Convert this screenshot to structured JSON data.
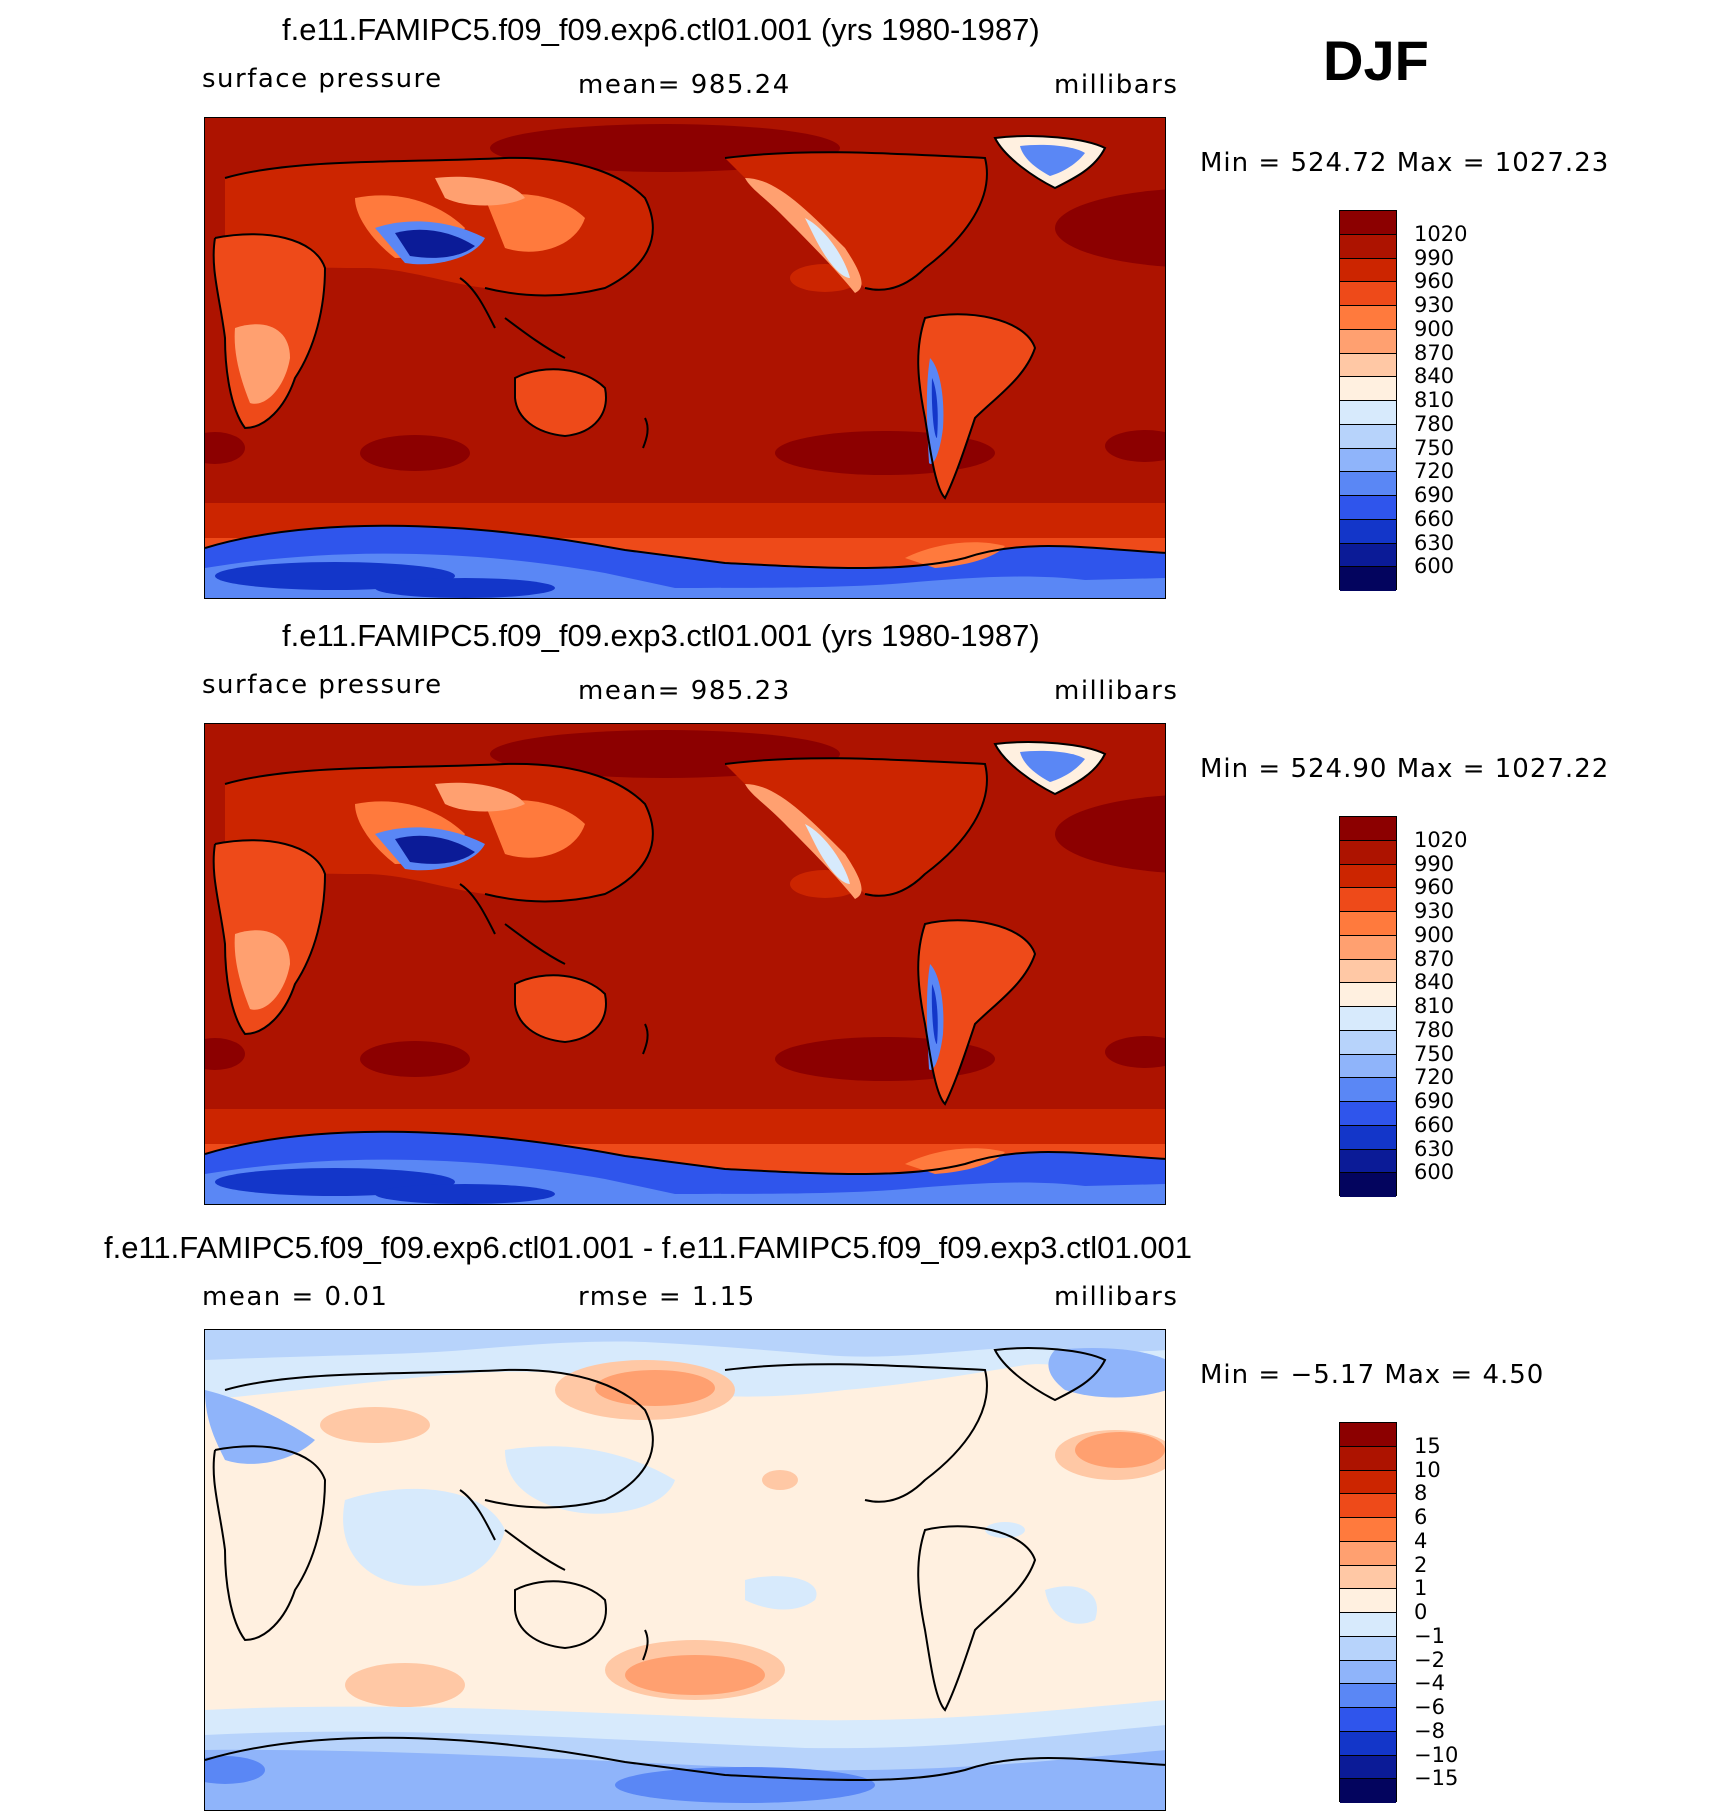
{
  "season": "DJF",
  "panels": [
    {
      "title": "f.e11.FAMIPC5.f09_f09.exp6.ctl01.001 (yrs 1980-1987)",
      "variable": "surface pressure",
      "stat": "mean=  985.24",
      "units": "millibars",
      "minmax": "Min  =  524.72  Max  =  1027.23",
      "colorbar_labels": [
        "1020",
        "990",
        "960",
        "930",
        "900",
        "870",
        "840",
        "810",
        "780",
        "750",
        "720",
        "690",
        "660",
        "630",
        "600"
      ],
      "colorbar_colors": [
        "#8c0000",
        "#ad1300",
        "#cc2500",
        "#ee4a19",
        "#ff7a3d",
        "#ffa070",
        "#ffc8a5",
        "#fff0e0",
        "#d7eafc",
        "#b7d3fb",
        "#8fb4fa",
        "#5a87f5",
        "#2f55ec",
        "#1336c9",
        "#0b1b97",
        "#03045e"
      ]
    },
    {
      "title": "f.e11.FAMIPC5.f09_f09.exp3.ctl01.001 (yrs 1980-1987)",
      "variable": "surface pressure",
      "stat": "mean=  985.23",
      "units": "millibars",
      "minmax": "Min  =  524.90  Max  =  1027.22",
      "colorbar_labels": [
        "1020",
        "990",
        "960",
        "930",
        "900",
        "870",
        "840",
        "810",
        "780",
        "750",
        "720",
        "690",
        "660",
        "630",
        "600"
      ],
      "colorbar_colors": [
        "#8c0000",
        "#ad1300",
        "#cc2500",
        "#ee4a19",
        "#ff7a3d",
        "#ffa070",
        "#ffc8a5",
        "#fff0e0",
        "#d7eafc",
        "#b7d3fb",
        "#8fb4fa",
        "#5a87f5",
        "#2f55ec",
        "#1336c9",
        "#0b1b97",
        "#03045e"
      ]
    },
    {
      "title": "f.e11.FAMIPC5.f09_f09.exp6.ctl01.001 - f.e11.FAMIPC5.f09_f09.exp3.ctl01.001",
      "stat_left": "mean  =     0.01",
      "stat_mid": "rmse  =     1.15",
      "units": "millibars",
      "minmax": "Min  =    −5.17  Max  =     4.50",
      "colorbar_labels": [
        "15",
        "10",
        "8",
        "6",
        "4",
        "2",
        "1",
        "0",
        "−1",
        "−2",
        "−4",
        "−6",
        "−8",
        "−10",
        "−15"
      ],
      "colorbar_colors": [
        "#8c0000",
        "#ad1300",
        "#cc2500",
        "#ee4a19",
        "#ff7a3d",
        "#ffa070",
        "#ffc8a5",
        "#fff0e0",
        "#d7eafc",
        "#b7d3fb",
        "#8fb4fa",
        "#5a87f5",
        "#2f55ec",
        "#1336c9",
        "#0b1b97",
        "#03045e"
      ]
    }
  ]
}
